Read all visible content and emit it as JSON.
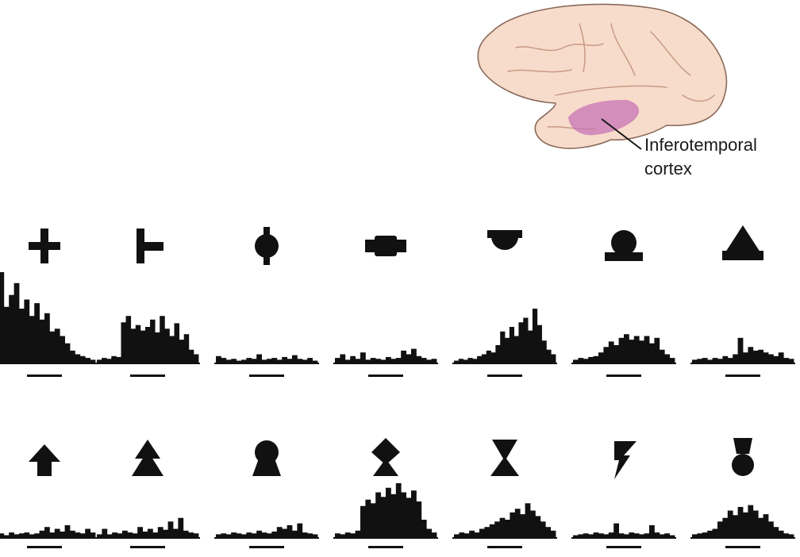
{
  "brain": {
    "label_lines": [
      "Inferotemporal",
      "cortex"
    ],
    "cortex_color": "#f8dccb",
    "highlight_color": "#c774b6"
  },
  "stimuli_rows": [
    [
      {
        "shape": "plus",
        "response": [
          0.55,
          1.0,
          0.62,
          0.75,
          0.88,
          0.6,
          0.7,
          0.52,
          0.66,
          0.48,
          0.55,
          0.35,
          0.38,
          0.3,
          0.22,
          0.14,
          0.1,
          0.08,
          0.06,
          0.04
        ]
      },
      {
        "shape": "t-rotated",
        "response": [
          0.04,
          0.06,
          0.05,
          0.08,
          0.07,
          0.45,
          0.52,
          0.38,
          0.42,
          0.36,
          0.4,
          0.48,
          0.34,
          0.52,
          0.38,
          0.3,
          0.44,
          0.26,
          0.32,
          0.15,
          0.1
        ]
      },
      {
        "shape": "circle-with-bars",
        "response": [
          0.08,
          0.06,
          0.04,
          0.05,
          0.03,
          0.04,
          0.06,
          0.05,
          0.1,
          0.04,
          0.05,
          0.06,
          0.04,
          0.07,
          0.05,
          0.09,
          0.05,
          0.04,
          0.06,
          0.03
        ]
      },
      {
        "shape": "cross-blob",
        "response": [
          0.06,
          0.1,
          0.04,
          0.08,
          0.05,
          0.12,
          0.04,
          0.06,
          0.05,
          0.04,
          0.07,
          0.05,
          0.06,
          0.14,
          0.1,
          0.16,
          0.08,
          0.06,
          0.04,
          0.05
        ]
      },
      {
        "shape": "bar-over-semicircle",
        "response": [
          0.03,
          0.05,
          0.04,
          0.06,
          0.05,
          0.08,
          0.1,
          0.14,
          0.12,
          0.2,
          0.35,
          0.28,
          0.4,
          0.3,
          0.45,
          0.5,
          0.36,
          0.6,
          0.42,
          0.25,
          0.15,
          0.1
        ]
      },
      {
        "shape": "circle-over-bar",
        "response": [
          0.04,
          0.06,
          0.05,
          0.07,
          0.08,
          0.12,
          0.18,
          0.24,
          0.2,
          0.28,
          0.32,
          0.26,
          0.3,
          0.25,
          0.3,
          0.22,
          0.28,
          0.15,
          0.1,
          0.06
        ]
      },
      {
        "shape": "triangle-on-bar",
        "response": [
          0.04,
          0.05,
          0.06,
          0.04,
          0.06,
          0.05,
          0.08,
          0.06,
          0.1,
          0.28,
          0.12,
          0.18,
          0.14,
          0.15,
          0.12,
          0.1,
          0.08,
          0.12,
          0.06,
          0.05
        ]
      }
    ],
    [
      {
        "shape": "arrow-up",
        "response": [
          0.04,
          0.05,
          0.03,
          0.06,
          0.04,
          0.05,
          0.06,
          0.04,
          0.05,
          0.08,
          0.12,
          0.06,
          0.1,
          0.07,
          0.14,
          0.08,
          0.06,
          0.05,
          0.1,
          0.06
        ]
      },
      {
        "shape": "double-triangle",
        "response": [
          0.04,
          0.1,
          0.04,
          0.06,
          0.05,
          0.08,
          0.06,
          0.05,
          0.12,
          0.07,
          0.1,
          0.06,
          0.12,
          0.09,
          0.18,
          0.1,
          0.22,
          0.08,
          0.06,
          0.05
        ]
      },
      {
        "shape": "circle-over-trapezoid",
        "response": [
          0.04,
          0.05,
          0.04,
          0.06,
          0.05,
          0.04,
          0.06,
          0.05,
          0.08,
          0.06,
          0.05,
          0.07,
          0.12,
          0.1,
          0.14,
          0.08,
          0.16,
          0.06,
          0.05,
          0.04
        ]
      },
      {
        "shape": "diamond-over-triangle",
        "response": [
          0.05,
          0.04,
          0.06,
          0.05,
          0.08,
          0.35,
          0.42,
          0.38,
          0.5,
          0.45,
          0.55,
          0.48,
          0.6,
          0.5,
          0.44,
          0.52,
          0.4,
          0.2,
          0.1,
          0.06
        ]
      },
      {
        "shape": "hourglass",
        "response": [
          0.04,
          0.06,
          0.05,
          0.08,
          0.06,
          0.1,
          0.12,
          0.15,
          0.18,
          0.22,
          0.2,
          0.28,
          0.32,
          0.26,
          0.38,
          0.3,
          0.24,
          0.18,
          0.12,
          0.08
        ]
      },
      {
        "shape": "lightning",
        "response": [
          0.03,
          0.04,
          0.05,
          0.04,
          0.06,
          0.05,
          0.04,
          0.06,
          0.16,
          0.05,
          0.04,
          0.06,
          0.05,
          0.04,
          0.05,
          0.14,
          0.06,
          0.04,
          0.05,
          0.03
        ]
      },
      {
        "shape": "trapezoid-over-circle",
        "response": [
          0.04,
          0.05,
          0.06,
          0.08,
          0.1,
          0.18,
          0.22,
          0.3,
          0.25,
          0.34,
          0.28,
          0.36,
          0.3,
          0.22,
          0.26,
          0.18,
          0.12,
          0.08,
          0.05,
          0.04
        ]
      }
    ]
  ]
}
